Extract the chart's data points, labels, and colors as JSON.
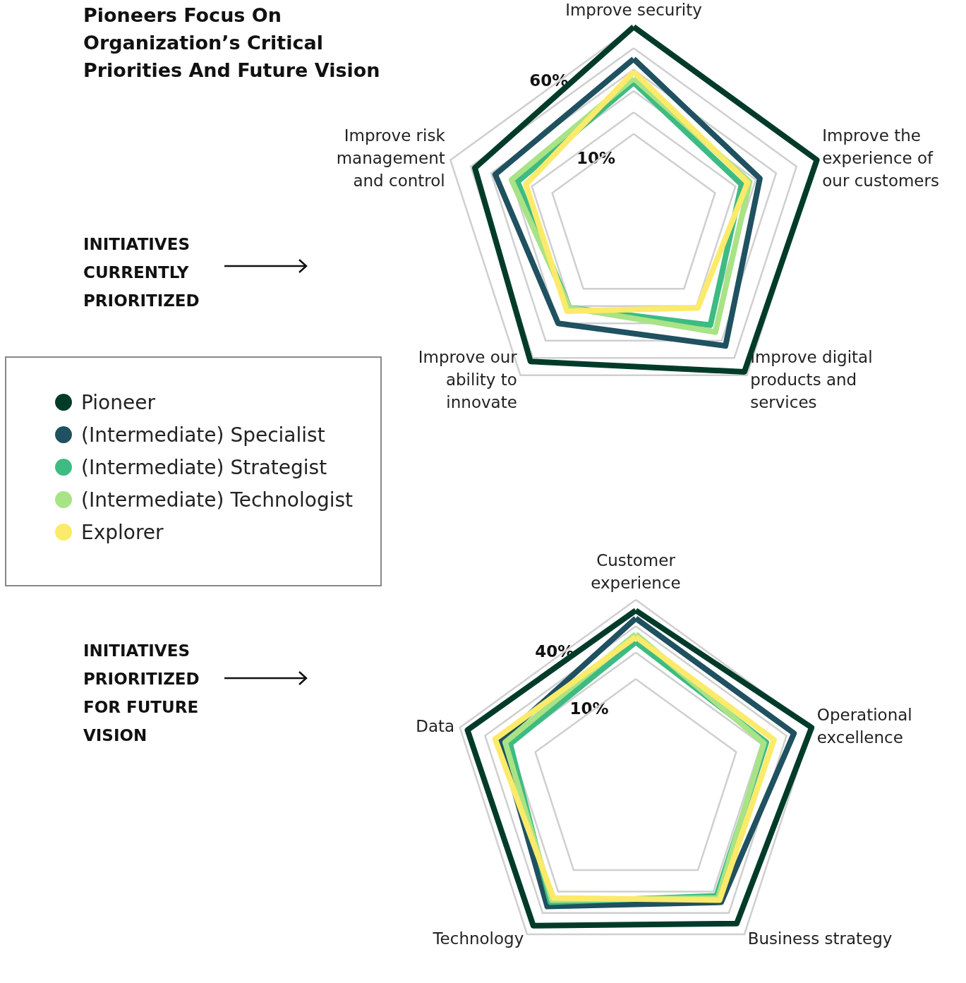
{
  "chart_data": [
    {
      "type": "radar",
      "title": "Pioneers Focus On\nOrganization’s Critical\nPriorities And Future Vision",
      "annotations": [
        "INITIATIVES\nCURRENTLY\nPRIORITIZED"
      ],
      "categories": [
        "Improve security",
        "Improve the\nexperience of\nour customers",
        "Improve digital\nproducts and\nservices",
        "Improve our\nability to\ninnovate",
        "Improve risk\nmanagement\nand control"
      ],
      "series": [
        {
          "name": "Pioneer",
          "color": "#003b2a",
          "values": [
            60,
            60,
            58,
            52,
            48
          ]
        },
        {
          "name": "(Intermediate) Specialist",
          "color": "#1f5160",
          "values": [
            45,
            32,
            43,
            30,
            38
          ]
        },
        {
          "name": "(Intermediate) Strategist",
          "color": "#3dbb82",
          "values": [
            34,
            23,
            31,
            21,
            27
          ]
        },
        {
          "name": "(Intermediate) Technologist",
          "color": "#a8e385",
          "values": [
            36,
            27,
            35,
            21,
            30
          ]
        },
        {
          "name": "Explorer",
          "color": "#fcea6a",
          "values": [
            39,
            26,
            21,
            23,
            23
          ]
        }
      ],
      "ylim": [
        -30,
        60
      ],
      "yticks": [
        {
          "value": 10,
          "label": "10%"
        },
        {
          "value": 60,
          "label": "60%"
        }
      ],
      "legend": "bottom left",
      "grid": true,
      "marker": "none",
      "line_style": "solid"
    },
    {
      "type": "radar",
      "annotations": [
        "INITIATIVES\nPRIORITIZED\nFOR FUTURE\nVISION"
      ],
      "categories": [
        "Customer\nexperience",
        "Operational\nexcellence",
        "Business strategy",
        "Technology",
        "Data"
      ],
      "series": [
        {
          "color": "#003b2a",
          "values": [
            36,
            40,
            35,
            36,
            37
          ]
        },
        {
          "color": "#1f5160",
          "values": [
            33,
            33,
            25,
            27,
            24
          ]
        },
        {
          "color": "#3dbb82",
          "values": [
            24,
            22,
            22,
            25,
            20
          ]
        },
        {
          "color": "#a8e385",
          "values": [
            27,
            21,
            23,
            24,
            22
          ]
        },
        {
          "color": "#fcea6a",
          "values": [
            26,
            25,
            24,
            23,
            26
          ]
        }
      ],
      "ylim": [
        -30,
        40
      ],
      "yticks": [
        {
          "value": 10,
          "label": "10%"
        },
        {
          "value": 40,
          "label": "40%"
        }
      ],
      "grid": true,
      "marker": "none",
      "line_style": "solid"
    }
  ]
}
